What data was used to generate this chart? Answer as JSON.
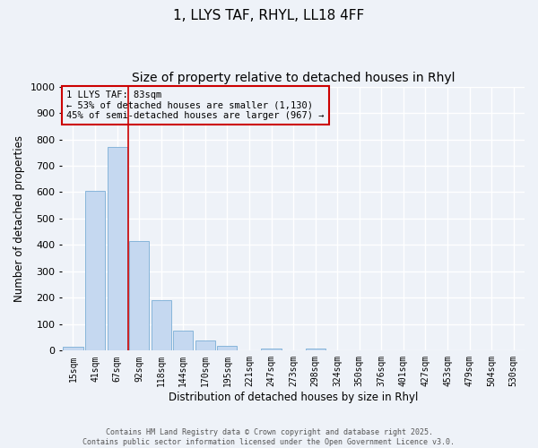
{
  "title1": "1, LLYS TAF, RHYL, LL18 4FF",
  "title2": "Size of property relative to detached houses in Rhyl",
  "xlabel": "Distribution of detached houses by size in Rhyl",
  "ylabel": "Number of detached properties",
  "bin_labels": [
    "15sqm",
    "41sqm",
    "67sqm",
    "92sqm",
    "118sqm",
    "144sqm",
    "170sqm",
    "195sqm",
    "221sqm",
    "247sqm",
    "273sqm",
    "298sqm",
    "324sqm",
    "350sqm",
    "376sqm",
    "401sqm",
    "427sqm",
    "453sqm",
    "479sqm",
    "504sqm",
    "530sqm"
  ],
  "bar_values": [
    15,
    605,
    770,
    415,
    192,
    75,
    40,
    17,
    0,
    8,
    0,
    8,
    0,
    0,
    0,
    0,
    0,
    0,
    0,
    0,
    0
  ],
  "bar_color": "#c5d8f0",
  "bar_edgecolor": "#7aaed6",
  "vline_color": "#cc0000",
  "annotation_title": "1 LLYS TAF: 83sqm",
  "annotation_line1": "← 53% of detached houses are smaller (1,130)",
  "annotation_line2": "45% of semi-detached houses are larger (967) →",
  "annotation_box_edgecolor": "#cc0000",
  "ylim": [
    0,
    1000
  ],
  "yticks": [
    0,
    100,
    200,
    300,
    400,
    500,
    600,
    700,
    800,
    900,
    1000
  ],
  "bg_color": "#eef2f8",
  "grid_color": "#ffffff",
  "footer1": "Contains HM Land Registry data © Crown copyright and database right 2025.",
  "footer2": "Contains public sector information licensed under the Open Government Licence v3.0.",
  "title_fontsize": 11,
  "subtitle_fontsize": 10,
  "footer_fontsize": 6
}
